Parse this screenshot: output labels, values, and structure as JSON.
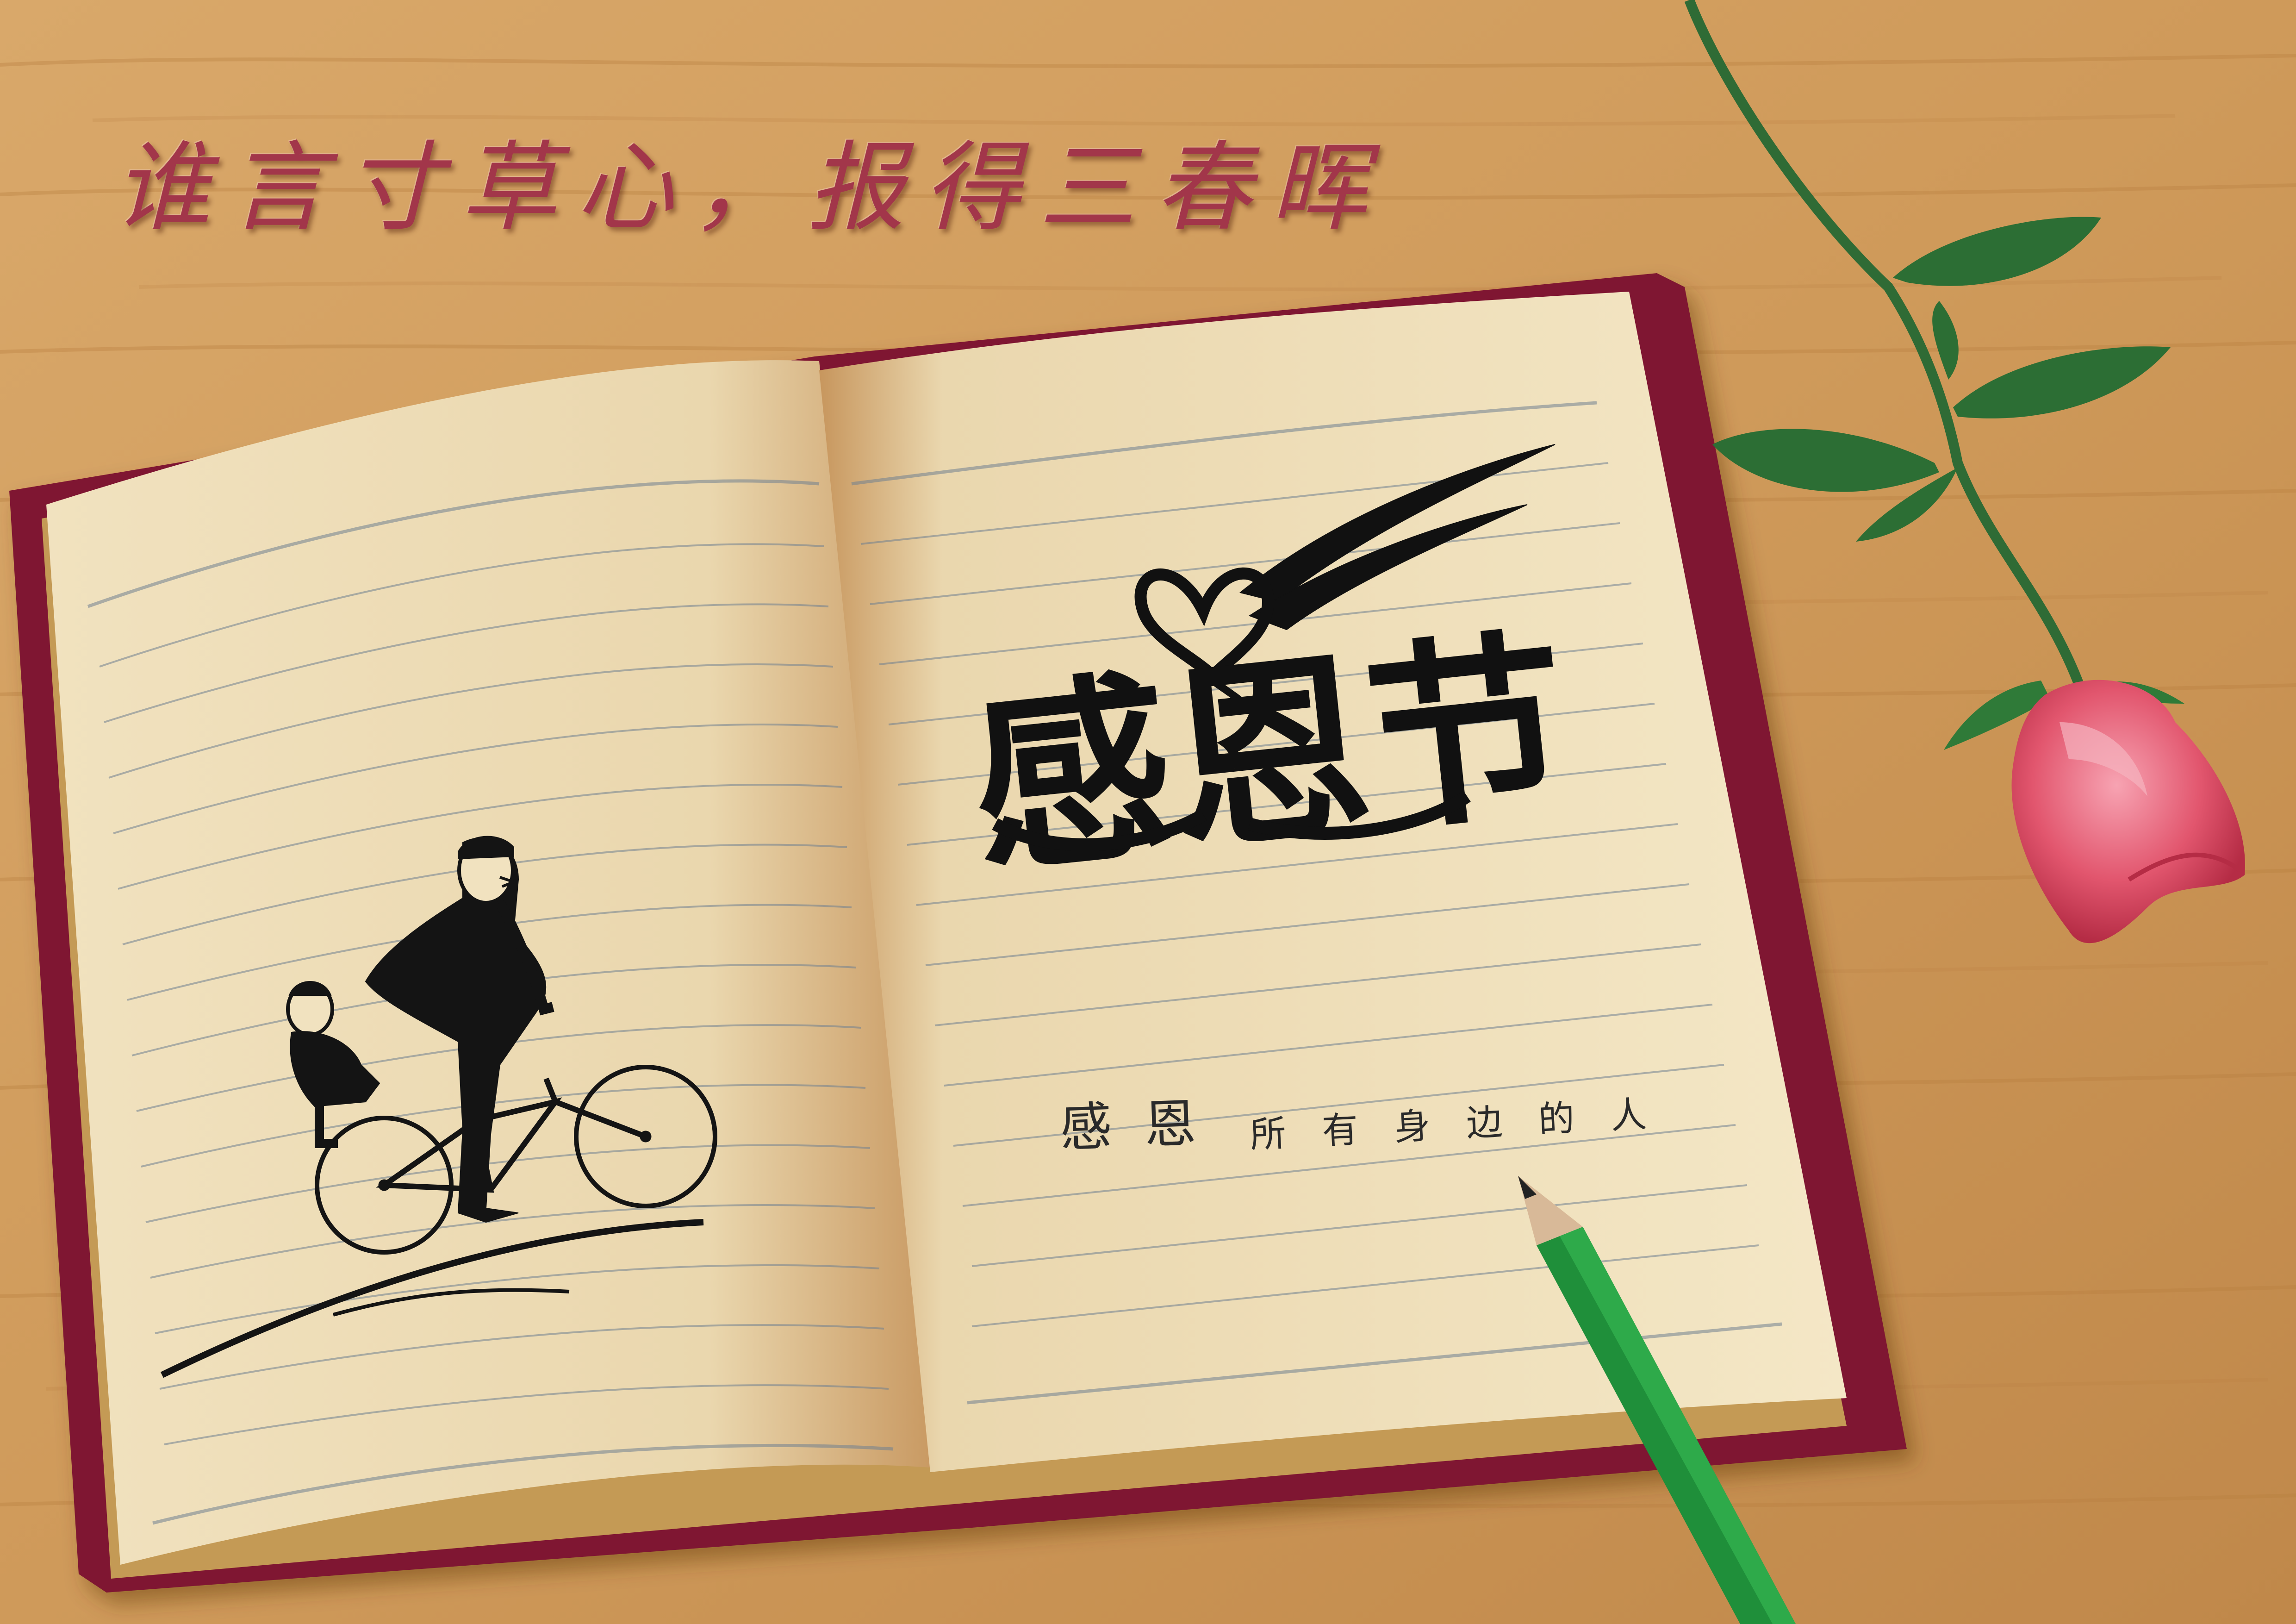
{
  "poem": "谁言寸草心，报得三春晖",
  "title": "感恩节",
  "handwriting": {
    "word1": "感恩",
    "word2": "所有身边的人"
  },
  "colors": {
    "wood_light": "#d9a86a",
    "wood_dark": "#b57a3e",
    "cover": "#7f1430",
    "page": "#f4e6c4",
    "page_shadow": "#cfa06a",
    "poem": "#a2364a",
    "ink": "#1a1a1a",
    "rose": "#e2566e",
    "leaf": "#2c6e34",
    "pencil": "#1f8f3a"
  }
}
